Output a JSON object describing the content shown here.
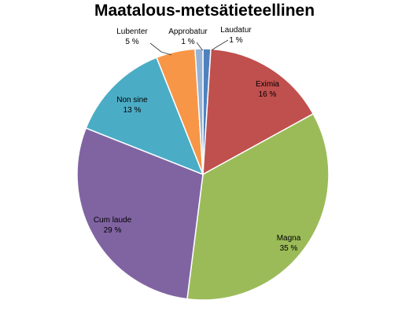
{
  "chart_data": {
    "type": "pie",
    "title": "Maatalous-metsätieteellinen",
    "start_angle_deg": 0,
    "direction": "clockwise",
    "slices": [
      {
        "name": "Laudatur",
        "value": 1,
        "label": "1 %",
        "color": "#4F81BD"
      },
      {
        "name": "Eximia",
        "value": 16,
        "label": "16 %",
        "color": "#C0504D"
      },
      {
        "name": "Magna",
        "value": 35,
        "label": "35 %",
        "color": "#9BBB59"
      },
      {
        "name": "Cum laude",
        "value": 29,
        "label": "29 %",
        "color": "#8064A2"
      },
      {
        "name": "Non sine",
        "value": 13,
        "label": "13 %",
        "color": "#4BACC6"
      },
      {
        "name": "Lubenter",
        "value": 5,
        "label": "5 %",
        "color": "#F79646"
      },
      {
        "name": "Approbatur",
        "value": 1,
        "label": "1 %",
        "color": "#95B3D7"
      }
    ]
  }
}
